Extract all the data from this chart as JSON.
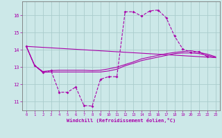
{
  "background_color": "#cce8e8",
  "grid_color": "#aacccc",
  "line_color": "#aa00aa",
  "xlabel": "Windchill (Refroidissement éolien,°C)",
  "xlim": [
    -0.5,
    23.5
  ],
  "ylim": [
    10.5,
    16.8
  ],
  "yticks": [
    11,
    12,
    13,
    14,
    15,
    16
  ],
  "xticks": [
    0,
    1,
    2,
    3,
    4,
    5,
    6,
    7,
    8,
    9,
    10,
    11,
    12,
    13,
    14,
    15,
    16,
    17,
    18,
    19,
    20,
    21,
    22,
    23
  ],
  "series1_x": [
    0,
    1,
    2,
    3,
    4,
    5,
    6,
    7,
    8,
    9,
    10,
    11,
    12,
    13,
    14,
    15,
    16,
    17,
    18,
    19,
    20,
    21,
    22
  ],
  "series1_y": [
    14.2,
    13.1,
    12.7,
    12.8,
    11.55,
    11.55,
    11.85,
    10.78,
    10.75,
    12.3,
    12.45,
    12.45,
    16.2,
    16.2,
    15.95,
    16.25,
    16.3,
    15.85,
    14.8,
    14.05,
    13.85,
    13.9,
    13.6
  ],
  "series2_x": [
    0,
    1,
    2,
    3,
    4,
    5,
    6,
    7,
    8,
    9,
    10,
    11,
    12,
    13,
    14,
    15,
    16,
    17,
    18,
    19,
    20,
    21,
    22,
    23
  ],
  "series2_y": [
    14.2,
    13.1,
    12.75,
    12.8,
    12.82,
    12.82,
    12.82,
    12.82,
    12.8,
    12.82,
    12.9,
    13.0,
    13.15,
    13.3,
    13.48,
    13.58,
    13.68,
    13.78,
    13.85,
    13.9,
    13.95,
    13.85,
    13.75,
    13.6
  ],
  "series3_x": [
    0,
    1,
    2,
    3,
    4,
    5,
    6,
    7,
    8,
    9,
    10,
    11,
    12,
    13,
    14,
    15,
    16,
    17,
    18,
    19,
    20,
    21,
    22,
    23
  ],
  "series3_y": [
    14.2,
    13.1,
    12.7,
    12.72,
    12.72,
    12.72,
    12.72,
    12.72,
    12.72,
    12.72,
    12.78,
    12.88,
    13.08,
    13.22,
    13.38,
    13.48,
    13.58,
    13.68,
    13.78,
    13.82,
    13.82,
    13.78,
    13.68,
    13.55
  ],
  "series4_x": [
    0,
    23
  ],
  "series4_y": [
    14.2,
    13.55
  ]
}
